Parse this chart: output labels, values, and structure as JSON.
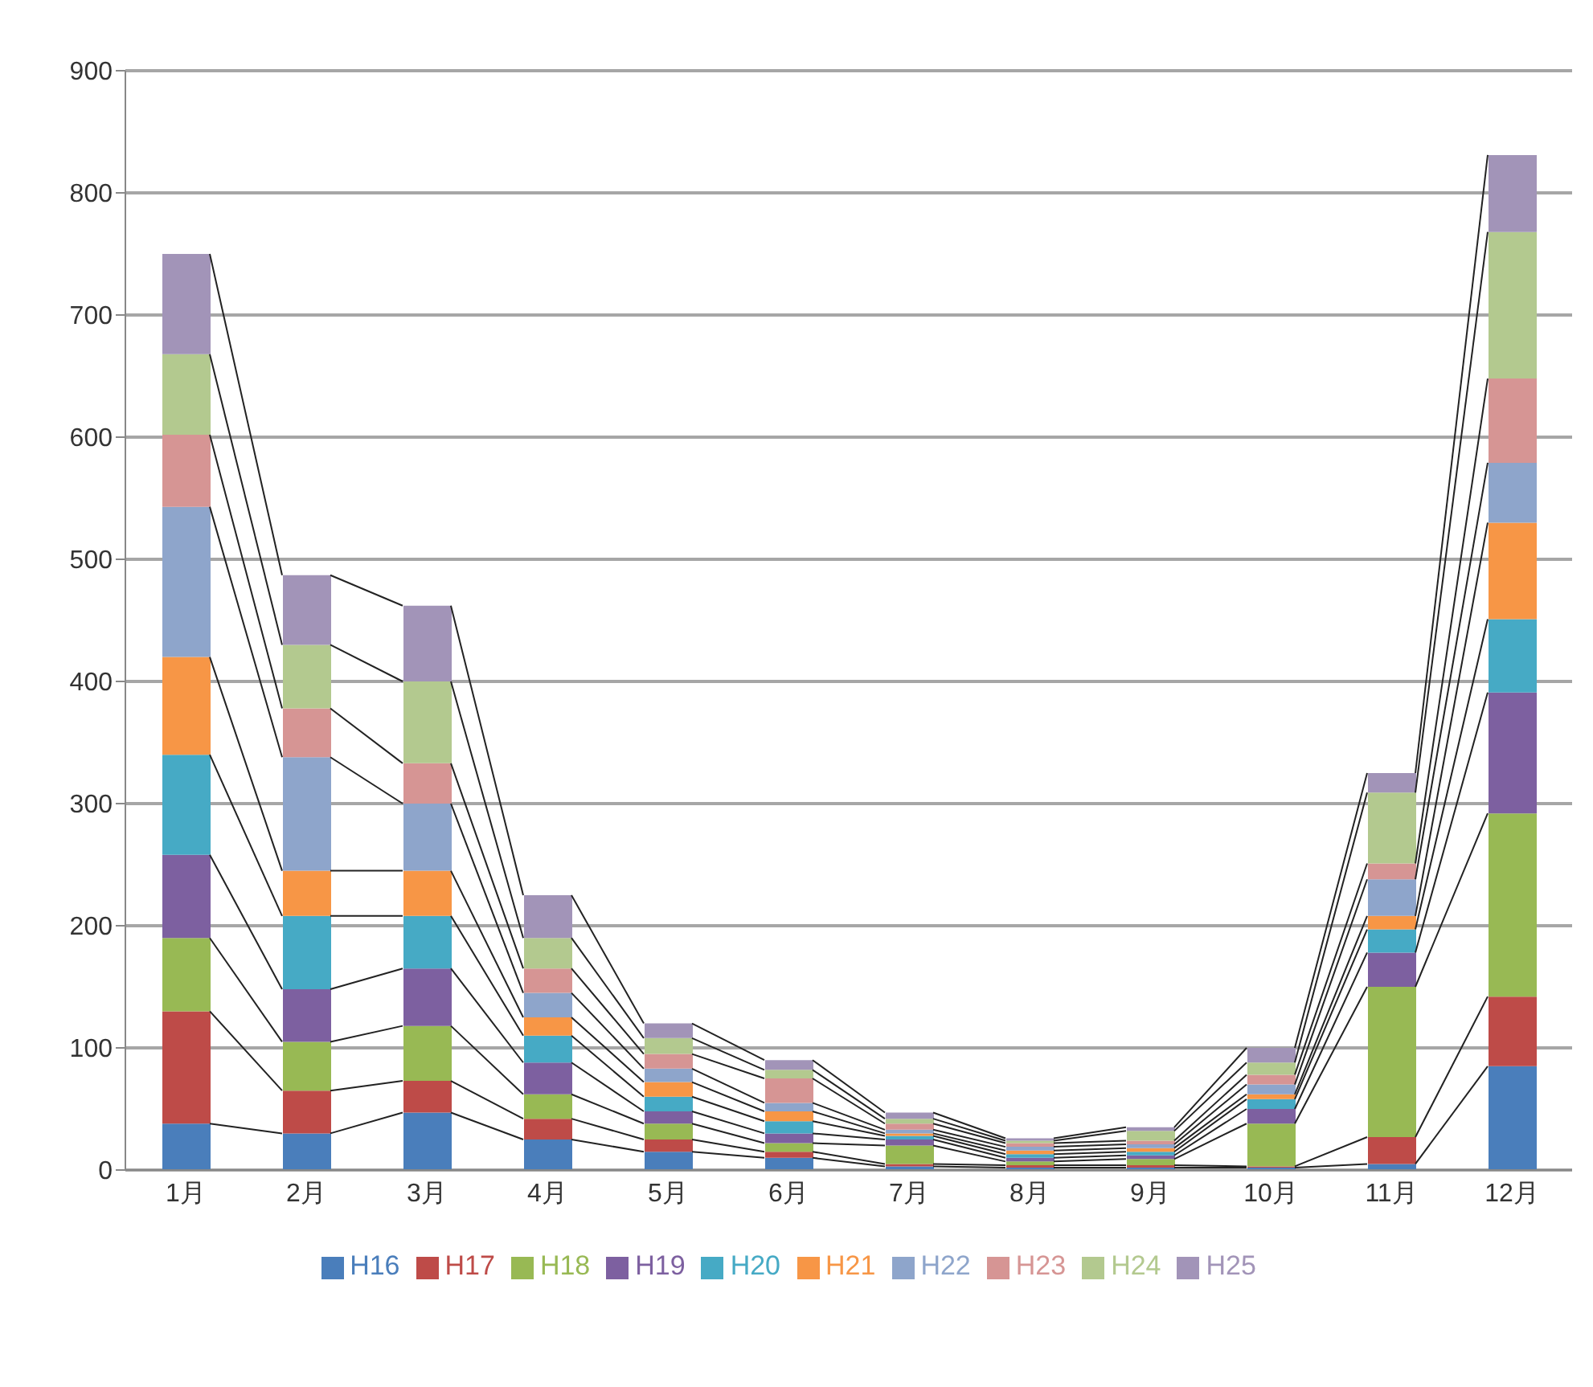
{
  "chart_data": {
    "type": "bar",
    "stacked": true,
    "categories": [
      "1月",
      "2月",
      "3月",
      "4月",
      "5月",
      "6月",
      "7月",
      "8月",
      "9月",
      "10月",
      "11月",
      "12月"
    ],
    "series": [
      {
        "name": "H16",
        "color": "#4a7ebb",
        "values": [
          38,
          30,
          47,
          25,
          15,
          10,
          3,
          2,
          2,
          2,
          5,
          85
        ]
      },
      {
        "name": "H17",
        "color": "#be4b48",
        "values": [
          92,
          35,
          26,
          17,
          10,
          5,
          2,
          2,
          2,
          1,
          22,
          57
        ]
      },
      {
        "name": "H18",
        "color": "#98b954",
        "values": [
          60,
          40,
          45,
          20,
          13,
          7,
          15,
          3,
          5,
          35,
          123,
          150
        ]
      },
      {
        "name": "H19",
        "color": "#7d60a0",
        "values": [
          68,
          43,
          47,
          26,
          10,
          8,
          5,
          3,
          3,
          12,
          28,
          99
        ]
      },
      {
        "name": "H20",
        "color": "#46aac5",
        "values": [
          82,
          60,
          43,
          22,
          12,
          10,
          3,
          3,
          3,
          8,
          19,
          60
        ]
      },
      {
        "name": "H21",
        "color": "#f79646",
        "values": [
          80,
          37,
          37,
          15,
          12,
          8,
          2,
          3,
          3,
          4,
          11,
          79
        ]
      },
      {
        "name": "H22",
        "color": "#8ea5cb",
        "values": [
          123,
          93,
          55,
          20,
          11,
          7,
          3,
          3,
          3,
          8,
          30,
          49
        ]
      },
      {
        "name": "H23",
        "color": "#d69594",
        "values": [
          59,
          40,
          33,
          20,
          12,
          20,
          5,
          3,
          3,
          8,
          13,
          69
        ]
      },
      {
        "name": "H24",
        "color": "#b3c98f",
        "values": [
          66,
          52,
          67,
          25,
          13,
          7,
          4,
          2,
          8,
          10,
          58,
          120
        ]
      },
      {
        "name": "H25",
        "color": "#a294b8",
        "values": [
          82,
          57,
          62,
          35,
          12,
          8,
          5,
          2,
          3,
          12,
          16,
          63
        ]
      }
    ],
    "ylim": [
      0,
      900
    ],
    "yticks": [
      0,
      100,
      200,
      300,
      400,
      500,
      600,
      700,
      800,
      900
    ],
    "grid": "y",
    "legend": "bottom"
  }
}
